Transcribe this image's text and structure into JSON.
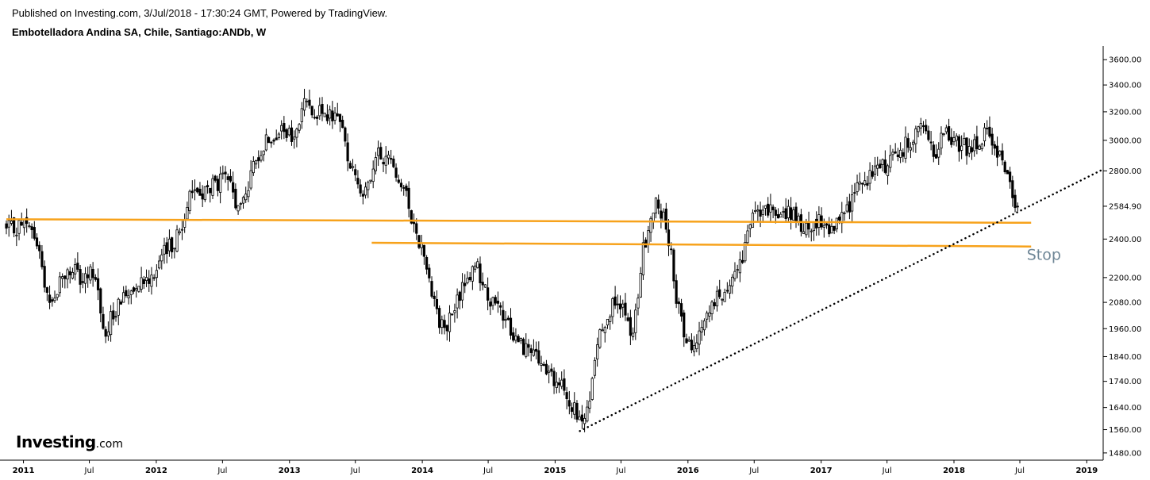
{
  "header": {
    "published": "Published on Investing.com, 3/Jul/2018 - 17:30:24 GMT, Powered by TradingView.",
    "title": "Embotelladora Andina SA, Chile, Santiago:ANDb, W"
  },
  "logo": {
    "name": "Investing",
    "suffix": ".com"
  },
  "chart_data": {
    "type": "candlestick",
    "interval": "W",
    "x_range": [
      "2010-11-15",
      "2019-02-15"
    ],
    "y_range": [
      1456,
      3713
    ],
    "y_scale": "log",
    "y_ticks": [
      "3600.00",
      "3400.00",
      "3200.00",
      "3000.00",
      "2800.00",
      "2400.00",
      "2200.00",
      "2080.00",
      "1960.00",
      "1840.00",
      "1740.00",
      "1640.00",
      "1560.00",
      "1480.00"
    ],
    "last_price_label": "2584.90",
    "last_price": 2584.9,
    "x_ticks": [
      {
        "label": "2011",
        "date": "2011-01-01",
        "bold": true
      },
      {
        "label": "Jul",
        "date": "2011-07-01",
        "bold": false
      },
      {
        "label": "2012",
        "date": "2012-01-01",
        "bold": true
      },
      {
        "label": "Jul",
        "date": "2012-07-01",
        "bold": false
      },
      {
        "label": "2013",
        "date": "2013-01-01",
        "bold": true
      },
      {
        "label": "Jul",
        "date": "2013-07-01",
        "bold": false
      },
      {
        "label": "2014",
        "date": "2014-01-01",
        "bold": true
      },
      {
        "label": "Jul",
        "date": "2014-07-01",
        "bold": false
      },
      {
        "label": "2015",
        "date": "2015-01-01",
        "bold": true
      },
      {
        "label": "Jul",
        "date": "2015-07-01",
        "bold": false
      },
      {
        "label": "2016",
        "date": "2016-01-01",
        "bold": true
      },
      {
        "label": "Jul",
        "date": "2016-07-01",
        "bold": false
      },
      {
        "label": "2017",
        "date": "2017-01-01",
        "bold": true
      },
      {
        "label": "Jul",
        "date": "2017-07-01",
        "bold": false
      },
      {
        "label": "2018",
        "date": "2018-01-01",
        "bold": true
      },
      {
        "label": "Jul",
        "date": "2018-07-01",
        "bold": false
      },
      {
        "label": "2019",
        "date": "2019-01-01",
        "bold": true
      }
    ],
    "series": [
      {
        "date": "2010-11-15",
        "close": 2450
      },
      {
        "date": "2011-01-01",
        "close": 2480
      },
      {
        "date": "2011-02-01",
        "close": 2420
      },
      {
        "date": "2011-03-01",
        "close": 2180
      },
      {
        "date": "2011-03-20",
        "close": 2070
      },
      {
        "date": "2011-04-15",
        "close": 2200
      },
      {
        "date": "2011-05-15",
        "close": 2240
      },
      {
        "date": "2011-06-15",
        "close": 2170
      },
      {
        "date": "2011-07-15",
        "close": 2250
      },
      {
        "date": "2011-08-15",
        "close": 1900
      },
      {
        "date": "2011-09-01",
        "close": 2020
      },
      {
        "date": "2011-10-01",
        "close": 2100
      },
      {
        "date": "2011-11-15",
        "close": 2200
      },
      {
        "date": "2011-12-15",
        "close": 2200
      },
      {
        "date": "2012-01-15",
        "close": 2300
      },
      {
        "date": "2012-02-15",
        "close": 2380
      },
      {
        "date": "2012-03-15",
        "close": 2470
      },
      {
        "date": "2012-04-01",
        "close": 2700
      },
      {
        "date": "2012-05-01",
        "close": 2650
      },
      {
        "date": "2012-06-01",
        "close": 2700
      },
      {
        "date": "2012-07-15",
        "close": 2750
      },
      {
        "date": "2012-08-15",
        "close": 2550
      },
      {
        "date": "2012-09-15",
        "close": 2750
      },
      {
        "date": "2012-10-15",
        "close": 2950
      },
      {
        "date": "2012-11-15",
        "close": 3050
      },
      {
        "date": "2012-12-15",
        "close": 3050
      },
      {
        "date": "2013-01-15",
        "close": 3000
      },
      {
        "date": "2013-02-15",
        "close": 3300
      },
      {
        "date": "2013-03-15",
        "close": 3200
      },
      {
        "date": "2013-04-15",
        "close": 3150
      },
      {
        "date": "2013-05-15",
        "close": 3200
      },
      {
        "date": "2013-06-15",
        "close": 2850
      },
      {
        "date": "2013-07-15",
        "close": 2700
      },
      {
        "date": "2013-08-01",
        "close": 2650
      },
      {
        "date": "2013-09-01",
        "close": 2900
      },
      {
        "date": "2013-10-15",
        "close": 2850
      },
      {
        "date": "2013-11-15",
        "close": 2650
      },
      {
        "date": "2013-12-15",
        "close": 2450
      },
      {
        "date": "2014-01-15",
        "close": 2250
      },
      {
        "date": "2014-02-15",
        "close": 2000
      },
      {
        "date": "2014-03-01",
        "close": 1950
      },
      {
        "date": "2014-04-01",
        "close": 2050
      },
      {
        "date": "2014-05-01",
        "close": 2200
      },
      {
        "date": "2014-06-01",
        "close": 2250
      },
      {
        "date": "2014-07-01",
        "close": 2100
      },
      {
        "date": "2014-08-15",
        "close": 2000
      },
      {
        "date": "2014-09-15",
        "close": 1920
      },
      {
        "date": "2014-10-15",
        "close": 1870
      },
      {
        "date": "2014-11-15",
        "close": 1820
      },
      {
        "date": "2014-12-15",
        "close": 1760
      },
      {
        "date": "2015-01-15",
        "close": 1720
      },
      {
        "date": "2015-02-15",
        "close": 1650
      },
      {
        "date": "2015-03-10",
        "close": 1580
      },
      {
        "date": "2015-04-01",
        "close": 1620
      },
      {
        "date": "2015-05-01",
        "close": 1950
      },
      {
        "date": "2015-06-01",
        "close": 2050
      },
      {
        "date": "2015-07-01",
        "close": 2080
      },
      {
        "date": "2015-08-01",
        "close": 1900
      },
      {
        "date": "2015-09-01",
        "close": 2350
      },
      {
        "date": "2015-10-01",
        "close": 2600
      },
      {
        "date": "2015-10-20",
        "close": 2550
      },
      {
        "date": "2015-11-10",
        "close": 2400
      },
      {
        "date": "2015-12-01",
        "close": 2100
      },
      {
        "date": "2015-12-20",
        "close": 1950
      },
      {
        "date": "2016-01-15",
        "close": 1880
      },
      {
        "date": "2016-02-01",
        "close": 1950
      },
      {
        "date": "2016-03-01",
        "close": 2050
      },
      {
        "date": "2016-04-01",
        "close": 2120
      },
      {
        "date": "2016-05-01",
        "close": 2200
      },
      {
        "date": "2016-06-01",
        "close": 2300
      },
      {
        "date": "2016-07-01",
        "close": 2550
      },
      {
        "date": "2016-08-01",
        "close": 2600
      },
      {
        "date": "2016-09-01",
        "close": 2500
      },
      {
        "date": "2016-10-01",
        "close": 2550
      },
      {
        "date": "2016-11-01",
        "close": 2480
      },
      {
        "date": "2016-12-01",
        "close": 2450
      },
      {
        "date": "2017-01-01",
        "close": 2500
      },
      {
        "date": "2017-02-01",
        "close": 2450
      },
      {
        "date": "2017-03-01",
        "close": 2520
      },
      {
        "date": "2017-04-01",
        "close": 2650
      },
      {
        "date": "2017-05-01",
        "close": 2750
      },
      {
        "date": "2017-06-01",
        "close": 2800
      },
      {
        "date": "2017-07-01",
        "close": 2850
      },
      {
        "date": "2017-08-01",
        "close": 2900
      },
      {
        "date": "2017-09-01",
        "close": 3000
      },
      {
        "date": "2017-10-01",
        "close": 3100
      },
      {
        "date": "2017-10-20",
        "close": 3050
      },
      {
        "date": "2017-11-10",
        "close": 2800
      },
      {
        "date": "2017-12-01",
        "close": 3050
      },
      {
        "date": "2018-01-01",
        "close": 3000
      },
      {
        "date": "2018-02-01",
        "close": 2950
      },
      {
        "date": "2018-03-01",
        "close": 2980
      },
      {
        "date": "2018-04-01",
        "close": 3050
      },
      {
        "date": "2018-04-20",
        "close": 2980
      },
      {
        "date": "2018-05-15",
        "close": 2850
      },
      {
        "date": "2018-06-05",
        "close": 2680
      },
      {
        "date": "2018-06-20",
        "close": 2520
      },
      {
        "date": "2018-07-01",
        "close": 2584.9
      }
    ],
    "drawings": {
      "orange_lines": [
        {
          "start": {
            "date": "2010-11-15",
            "price": 2510
          },
          "end": {
            "date": "2018-08-01",
            "price": 2490
          }
        },
        {
          "start": {
            "date": "2013-08-15",
            "price": 2380
          },
          "end": {
            "date": "2018-08-01",
            "price": 2360
          }
        }
      ],
      "trend_line": {
        "start": {
          "date": "2015-03-10",
          "price": 1555
        },
        "end": {
          "date": "2019-02-15",
          "price": 2810
        },
        "style": "dotted"
      },
      "annotation": {
        "text": "Stop",
        "date": "2018-07-20",
        "price": 2290
      }
    },
    "colors": {
      "candle": "#000000",
      "orange": "#f7a21b",
      "annotation": "#6f8797",
      "axis": "#000000"
    }
  }
}
